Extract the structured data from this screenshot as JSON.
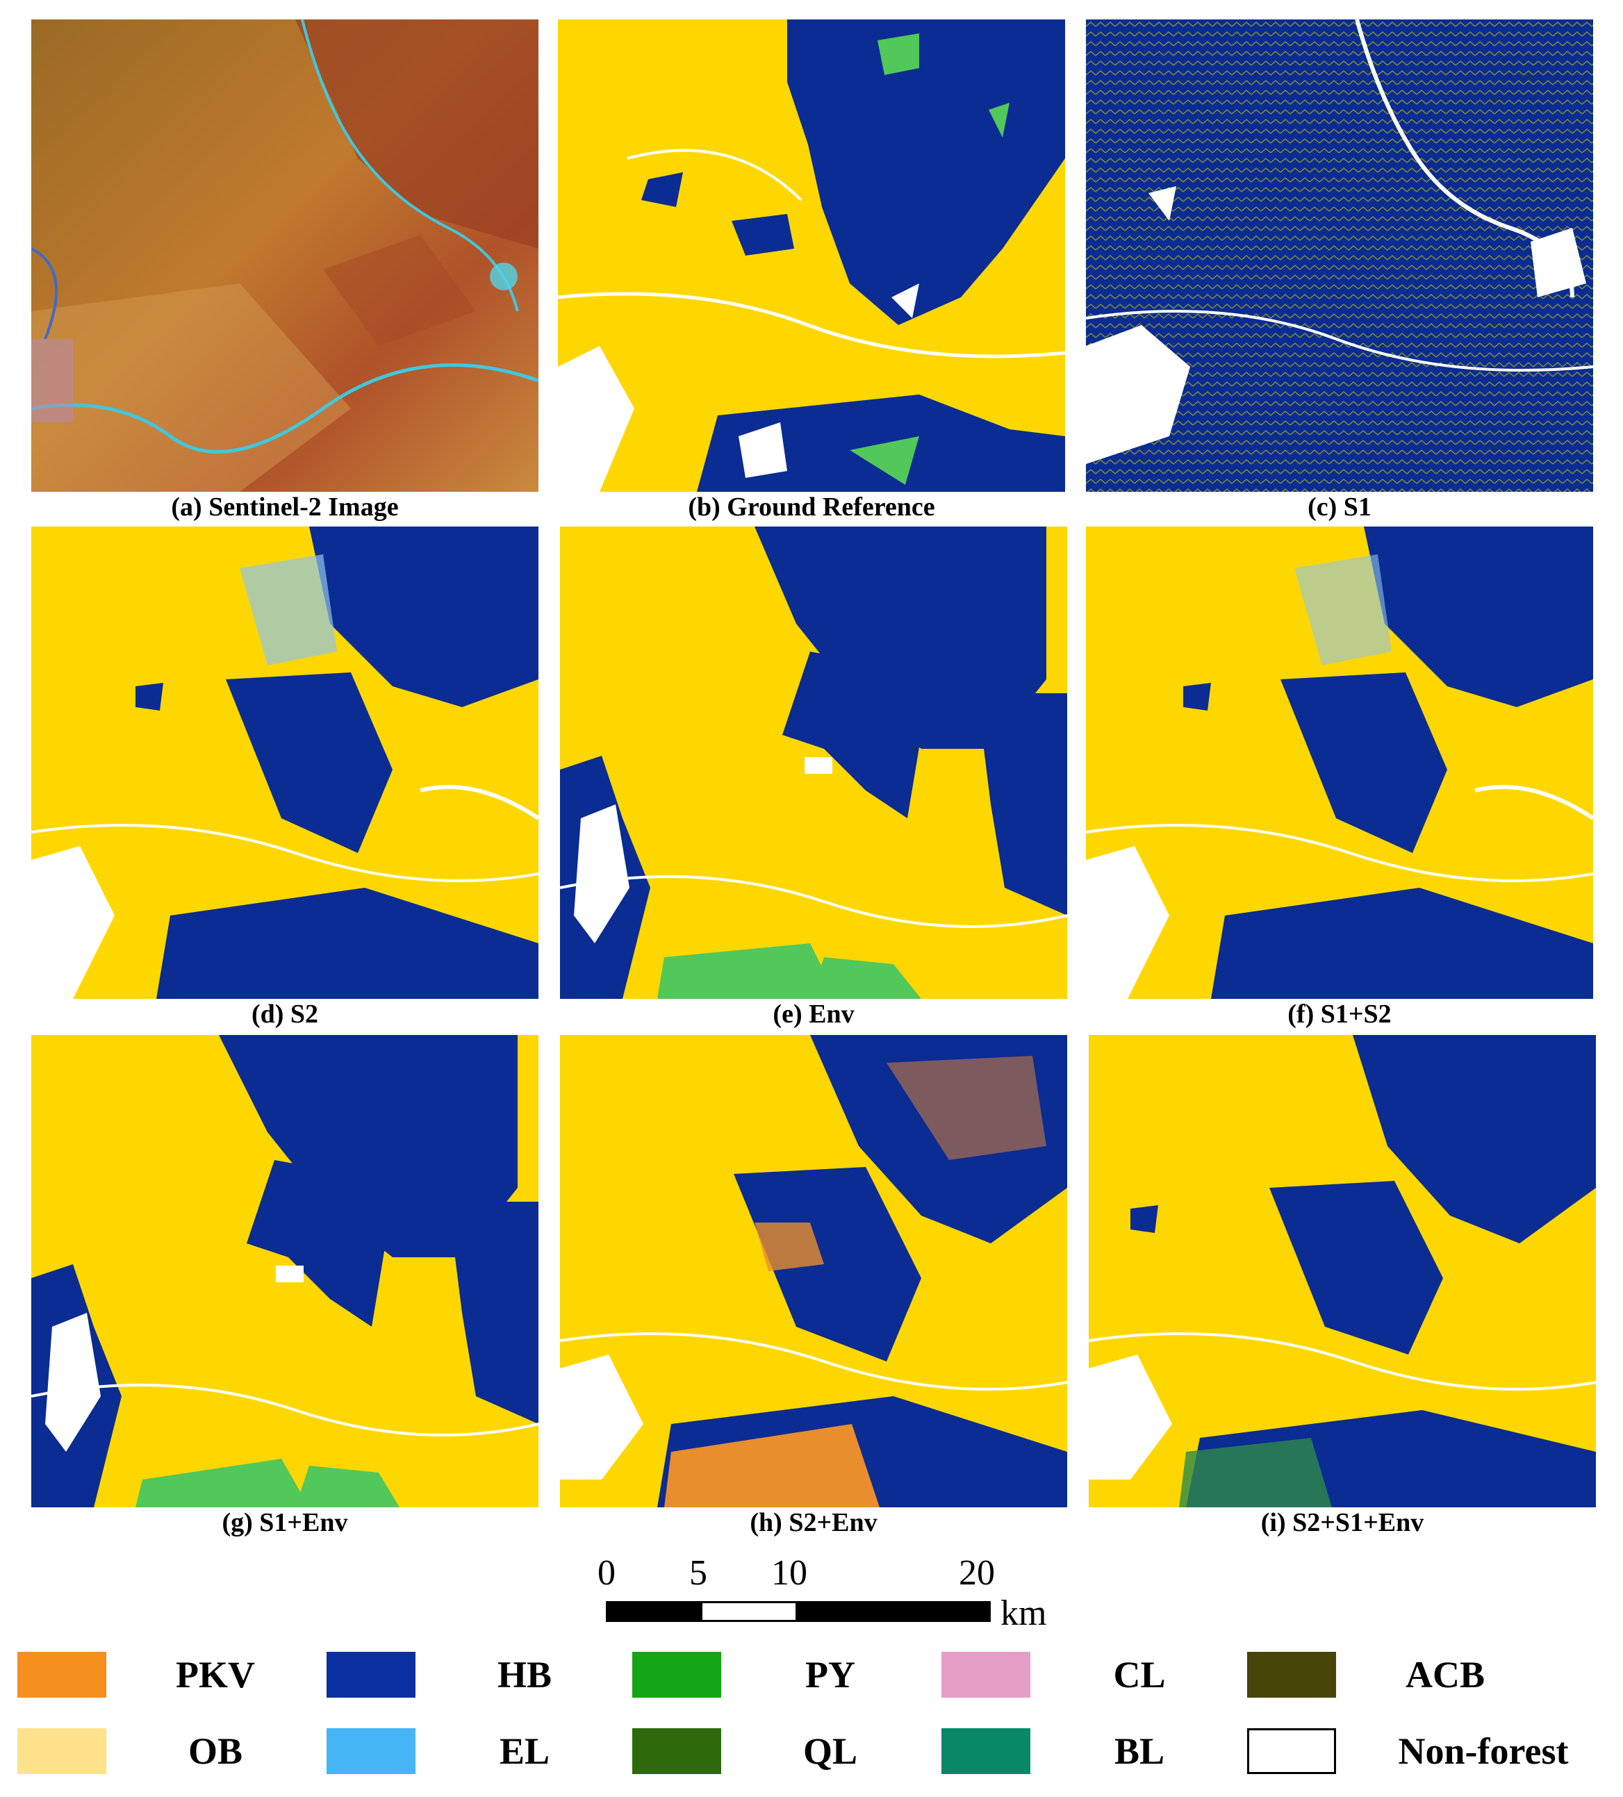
{
  "panels": [
    {
      "id": "a",
      "caption": "(a) Sentinel-2 Image"
    },
    {
      "id": "b",
      "caption": "(b) Ground Reference"
    },
    {
      "id": "c",
      "caption": "(c) S1"
    },
    {
      "id": "d",
      "caption": "(d) S2"
    },
    {
      "id": "e",
      "caption": "(e) Env"
    },
    {
      "id": "f",
      "caption": "(f) S1+S2"
    },
    {
      "id": "g",
      "caption": "(g) S1+Env"
    },
    {
      "id": "h",
      "caption": "(h) S2+Env"
    },
    {
      "id": "i",
      "caption": "(i) S2+S1+Env"
    }
  ],
  "scale_bar": {
    "ticks": [
      "0",
      "5",
      "10",
      "20"
    ],
    "unit": "km"
  },
  "legend": [
    {
      "label": "PKV",
      "color": "#F5901E"
    },
    {
      "label": "HB",
      "color": "#0A2FA0"
    },
    {
      "label": "PY",
      "color": "#14A614"
    },
    {
      "label": "CL",
      "color": "#E59EC5"
    },
    {
      "label": "ACB",
      "color": "#474508"
    },
    {
      "label": "OB",
      "color": "#FFE28A"
    },
    {
      "label": "EL",
      "color": "#45B5F5"
    },
    {
      "label": "QL",
      "color": "#2E6A0A"
    },
    {
      "label": "BL",
      "color": "#098868"
    },
    {
      "label": "Non-forest",
      "color": "#FFFFFF"
    }
  ],
  "map_colors": {
    "ob": "#FFD700",
    "hb": "#0A2C93",
    "py": "#52C75A",
    "pkv": "#E88E2C",
    "el": "#8EC4E8",
    "nonforest": "#FFFFFF"
  }
}
